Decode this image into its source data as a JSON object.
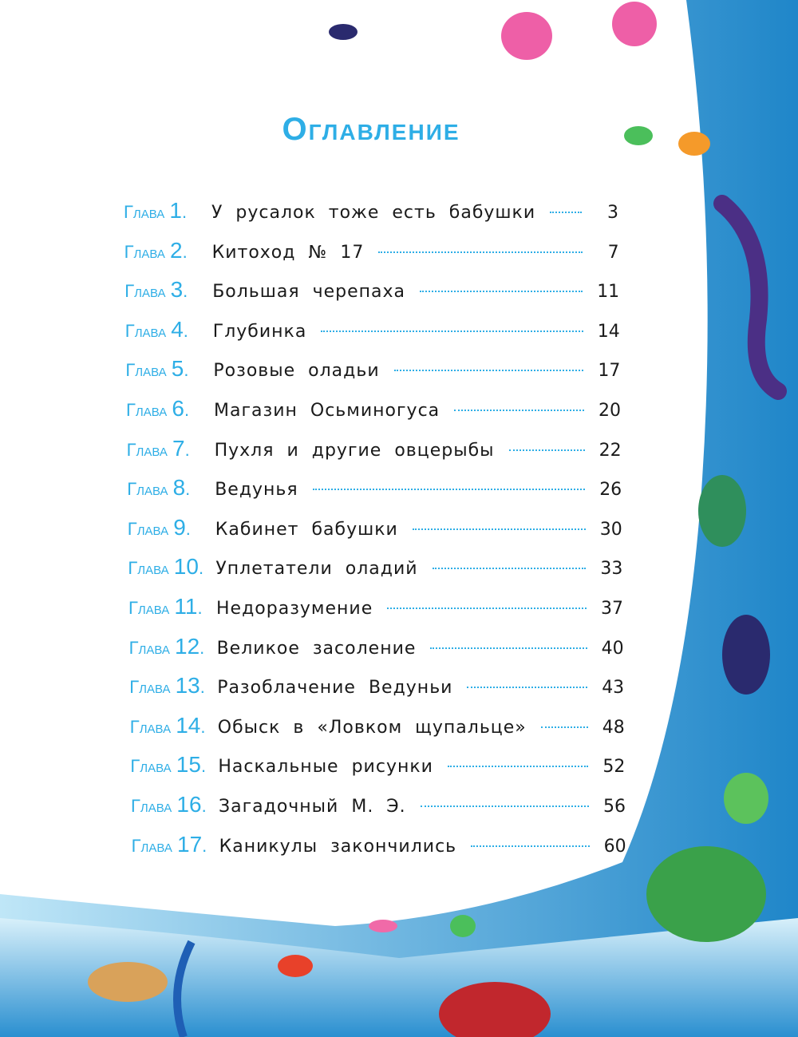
{
  "title": "Оглавление",
  "chapter_word": "Глава",
  "colors": {
    "accent": "#2eaee6",
    "ocean": "#1f86c9"
  },
  "chapters": [
    {
      "n": "1",
      "title": "У русалок тоже есть бабушки",
      "page": "3"
    },
    {
      "n": "2",
      "title": "Китоход № 17",
      "page": "7"
    },
    {
      "n": "3",
      "title": "Большая черепаха",
      "page": "11"
    },
    {
      "n": "4",
      "title": "Глубинка",
      "page": "14"
    },
    {
      "n": "5",
      "title": "Розовые оладьи",
      "page": "17"
    },
    {
      "n": "6",
      "title": "Магазин Осьминогуса",
      "page": "20"
    },
    {
      "n": "7",
      "title": "Пухля и другие овцерыбы",
      "page": "22"
    },
    {
      "n": "8",
      "title": "Ведунья",
      "page": "26"
    },
    {
      "n": "9",
      "title": "Кабинет бабушки",
      "page": "30"
    },
    {
      "n": "10",
      "title": "Уплетатели оладий",
      "page": "33"
    },
    {
      "n": "11",
      "title": "Недоразумение",
      "page": "37"
    },
    {
      "n": "12",
      "title": "Великое засоление",
      "page": "40"
    },
    {
      "n": "13",
      "title": "Разоблачение Ведуньи",
      "page": "43"
    },
    {
      "n": "14",
      "title": "Обыск в «Ловком щупальце»",
      "page": "48"
    },
    {
      "n": "15",
      "title": "Наскальные рисунки",
      "page": "52"
    },
    {
      "n": "16",
      "title": "Загадочный М. Э.",
      "page": "56"
    },
    {
      "n": "17",
      "title": "Каникулы закончились",
      "page": "60"
    }
  ]
}
